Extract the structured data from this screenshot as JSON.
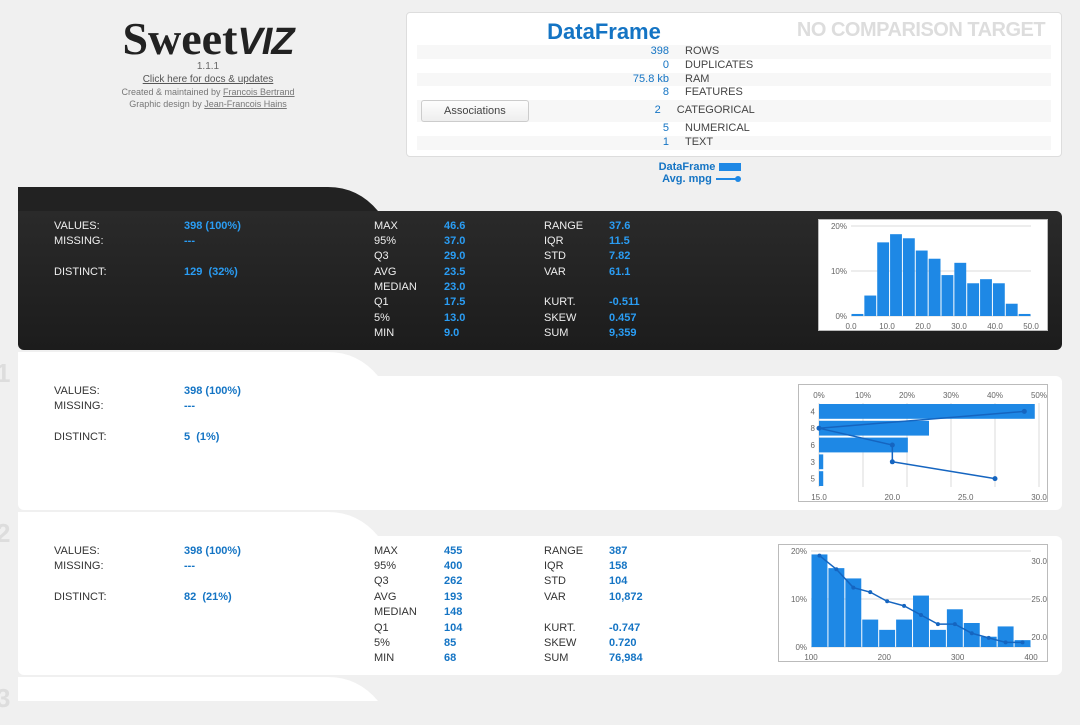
{
  "logo": {
    "brand": "Sweet",
    "suffix": "VIZ"
  },
  "version": "1.1.1",
  "doc_link": "Click here for docs & updates",
  "credits": {
    "line1_pre": "Created & maintained by ",
    "line1_link": "Francois Bertrand",
    "line2_pre": "Graphic design by ",
    "line2_link": "Jean-Francois Hains"
  },
  "dataframe": {
    "title": "DataFrame",
    "no_compare": "NO COMPARISON TARGET",
    "rows": [
      {
        "val": "398",
        "lbl": "ROWS"
      },
      {
        "val": "0",
        "lbl": "DUPLICATES"
      },
      {
        "val": "75.8 kb",
        "lbl": "RAM"
      },
      {
        "val": "8",
        "lbl": "FEATURES"
      },
      {
        "val": "2",
        "lbl": "CATEGORICAL"
      },
      {
        "val": "5",
        "lbl": "NUMERICAL"
      },
      {
        "val": "1",
        "lbl": "TEXT"
      }
    ],
    "assoc_btn": "Associations"
  },
  "legend": {
    "a": "DataFrame",
    "b": "Avg. mpg"
  },
  "features": [
    {
      "id": "mpg",
      "rank": null,
      "dark": true,
      "icon": "dist",
      "basic": {
        "values_lbl": "VALUES:",
        "values_val": "398 (100%)",
        "missing_lbl": "MISSING:",
        "missing_val": "---",
        "distinct_lbl": "DISTINCT:",
        "distinct_val": "129",
        "distinct_pct": "(32%)"
      },
      "stats2": {
        "MAX": "46.6",
        "95%": "37.0",
        "Q3": "29.0",
        "AVG": "23.5",
        "MEDIAN": "23.0",
        "Q1": "17.5",
        "5%": "13.0",
        "MIN": "9.0"
      },
      "stats3": {
        "RANGE": "37.6",
        "IQR": "11.5",
        "STD": "7.82",
        "VAR": "61.1",
        "": "",
        "KURT.": "-0.511",
        "SKEW": "0.457",
        "SUM": "9,359"
      },
      "hist": {
        "bars": [
          0.5,
          5,
          18,
          20,
          19,
          16,
          14,
          10,
          13,
          8,
          9,
          8,
          3,
          0.5
        ],
        "y_ticks": [
          "0%",
          "10%",
          "20%"
        ],
        "x_ticks": [
          "0.0",
          "10.0",
          "20.0",
          "30.0",
          "40.0",
          "50.0"
        ],
        "color": "#1e88e5",
        "ymax": 22
      }
    },
    {
      "id": "cylinders",
      "rank": "1",
      "dark": false,
      "icon": "cat",
      "basic": {
        "values_lbl": "VALUES:",
        "values_val": "398 (100%)",
        "missing_lbl": "MISSING:",
        "missing_val": "---",
        "distinct_lbl": "DISTINCT:",
        "distinct_val": "5",
        "distinct_pct": "(1%)"
      },
      "barh": {
        "cats": [
          "4",
          "8",
          "6",
          "3",
          "5"
        ],
        "vals": [
          51,
          26,
          21,
          1,
          1
        ],
        "line": [
          29,
          15,
          20,
          20,
          27
        ],
        "line_x": [
          51,
          26,
          21,
          1,
          1
        ],
        "x_ticks": [
          "0%",
          "10%",
          "20%",
          "30%",
          "40%",
          "50%"
        ],
        "x2_ticks": [
          "15.0",
          "20.0",
          "25.0",
          "30.0"
        ],
        "color": "#1e88e5"
      }
    },
    {
      "id": "displacement",
      "rank": "2",
      "dark": false,
      "icon": "dist",
      "basic": {
        "values_lbl": "VALUES:",
        "values_val": "398 (100%)",
        "missing_lbl": "MISSING:",
        "missing_val": "---",
        "distinct_lbl": "DISTINCT:",
        "distinct_val": "82",
        "distinct_pct": "(21%)"
      },
      "stats2": {
        "MAX": "455",
        "95%": "400",
        "Q3": "262",
        "AVG": "193",
        "MEDIAN": "148",
        "Q1": "104",
        "5%": "85",
        "MIN": "68"
      },
      "stats3": {
        "RANGE": "387",
        "IQR": "158",
        "STD": "104",
        "VAR": "10,872",
        "": "",
        "KURT.": "-0.747",
        "SKEW": "0.720",
        "SUM": "76,984"
      },
      "hist": {
        "bars": [
          27,
          23,
          20,
          8,
          5,
          8,
          15,
          5,
          11,
          7,
          3,
          6,
          2
        ],
        "line": [
          33,
          30,
          26,
          25,
          23,
          22,
          20,
          18,
          18,
          16,
          15,
          14,
          14
        ],
        "y_ticks": [
          "0%",
          "10%",
          "20%"
        ],
        "x_ticks": [
          "100",
          "200",
          "300",
          "400"
        ],
        "y2_ticks": [
          "30.0",
          "25.0",
          "20.0"
        ],
        "color": "#1e88e5",
        "ymax": 28
      }
    },
    {
      "id": "horsepower",
      "rank": "3",
      "dark": false,
      "icon": "dist",
      "basic": {}
    }
  ]
}
